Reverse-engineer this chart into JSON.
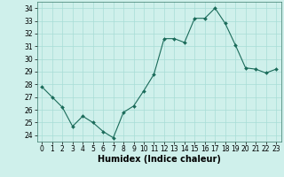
{
  "x": [
    0,
    1,
    2,
    3,
    4,
    5,
    6,
    7,
    8,
    9,
    10,
    11,
    12,
    13,
    14,
    15,
    16,
    17,
    18,
    19,
    20,
    21,
    22,
    23
  ],
  "y": [
    27.8,
    27.0,
    26.2,
    24.7,
    25.5,
    25.0,
    24.3,
    23.8,
    25.8,
    26.3,
    27.5,
    28.8,
    31.6,
    31.6,
    31.3,
    33.2,
    33.2,
    34.0,
    32.8,
    31.1,
    29.3,
    29.2,
    28.9,
    29.2
  ],
  "line_color": "#1a6b5a",
  "marker": "D",
  "marker_size": 2,
  "background_color": "#cff0eb",
  "grid_color": "#a8ddd6",
  "xlabel": "Humidex (Indice chaleur)",
  "xlabel_weight": "bold",
  "ylim": [
    23.5,
    34.5
  ],
  "xlim": [
    -0.5,
    23.5
  ],
  "yticks": [
    24,
    25,
    26,
    27,
    28,
    29,
    30,
    31,
    32,
    33,
    34
  ],
  "xticks": [
    0,
    1,
    2,
    3,
    4,
    5,
    6,
    7,
    8,
    9,
    10,
    11,
    12,
    13,
    14,
    15,
    16,
    17,
    18,
    19,
    20,
    21,
    22,
    23
  ],
  "tick_fontsize": 5.5,
  "xlabel_fontsize": 7.0
}
